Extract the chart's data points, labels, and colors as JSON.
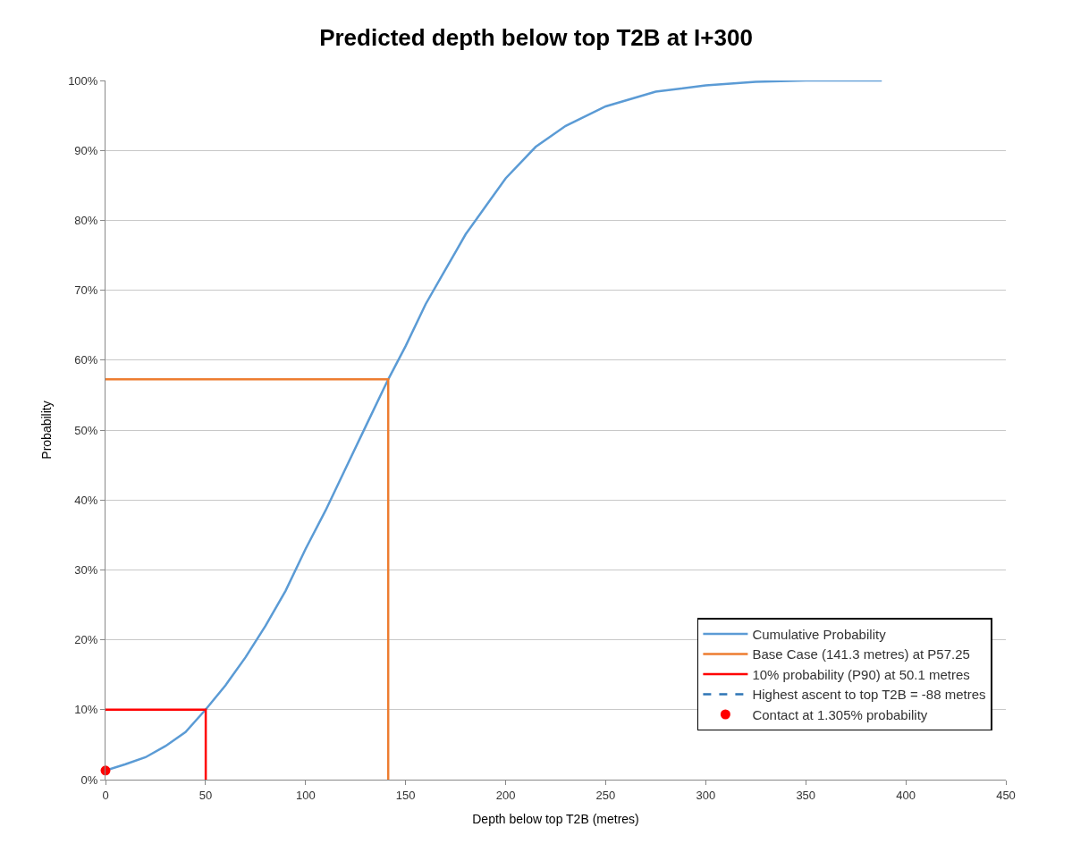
{
  "chart_data": {
    "type": "line",
    "title": "Predicted depth below top T2B at I+300",
    "xlabel": "Depth below top T2B (metres)",
    "ylabel": "Probability",
    "xlim": [
      0,
      450
    ],
    "xticks": [
      0,
      50,
      100,
      150,
      200,
      250,
      300,
      350,
      400,
      450
    ],
    "ylim": [
      0,
      100
    ],
    "yticks": [
      {
        "value": 0,
        "label": "0%"
      },
      {
        "value": 10,
        "label": "10%"
      },
      {
        "value": 20,
        "label": "20%"
      },
      {
        "value": 30,
        "label": "30%"
      },
      {
        "value": 40,
        "label": "40%"
      },
      {
        "value": 50,
        "label": "50%"
      },
      {
        "value": 60,
        "label": "60%"
      },
      {
        "value": 70,
        "label": "70%"
      },
      {
        "value": 80,
        "label": "80%"
      },
      {
        "value": 90,
        "label": "90%"
      },
      {
        "value": 100,
        "label": "100%"
      }
    ],
    "grid": "y",
    "legend": "bottom right",
    "series": [
      {
        "name": "Cumulative Probability",
        "color": "#5b9bd5",
        "line_style": "solid",
        "x": [
          0,
          10,
          20,
          30,
          40,
          50,
          60,
          70,
          80,
          90,
          100,
          110,
          120,
          130,
          141.3,
          150,
          160,
          170,
          180,
          190,
          200,
          215,
          230,
          250,
          275,
          300,
          325,
          350,
          388
        ],
        "values": [
          1.3,
          2.2,
          3.2,
          4.8,
          6.8,
          10,
          13.5,
          17.5,
          22,
          27,
          33,
          38.5,
          44.5,
          50.5,
          57.25,
          62,
          68,
          73,
          78,
          82,
          86,
          90.5,
          93.5,
          96.3,
          98.4,
          99.3,
          99.8,
          100,
          100
        ]
      },
      {
        "name": "Base Case (141.3 metres) at P57.25",
        "color": "#ed7d31",
        "line_style": "solid",
        "x": [
          0,
          141.3,
          141.3
        ],
        "values": [
          57.25,
          57.25,
          0
        ]
      },
      {
        "name": "10% probability (P90) at 50.1 metres",
        "color": "#ff0000",
        "line_style": "solid",
        "x": [
          0,
          50.1,
          50.1
        ],
        "values": [
          10,
          10,
          0
        ]
      },
      {
        "name": "Highest ascent to top T2B = -88 metres",
        "color": "#2e75b6",
        "line_style": "dashed"
      },
      {
        "type": "scatter",
        "name": "Contact at 1.305% probability",
        "color": "#ff0000",
        "marker": "circle",
        "x": [
          0
        ],
        "values": [
          1.305
        ]
      }
    ]
  }
}
